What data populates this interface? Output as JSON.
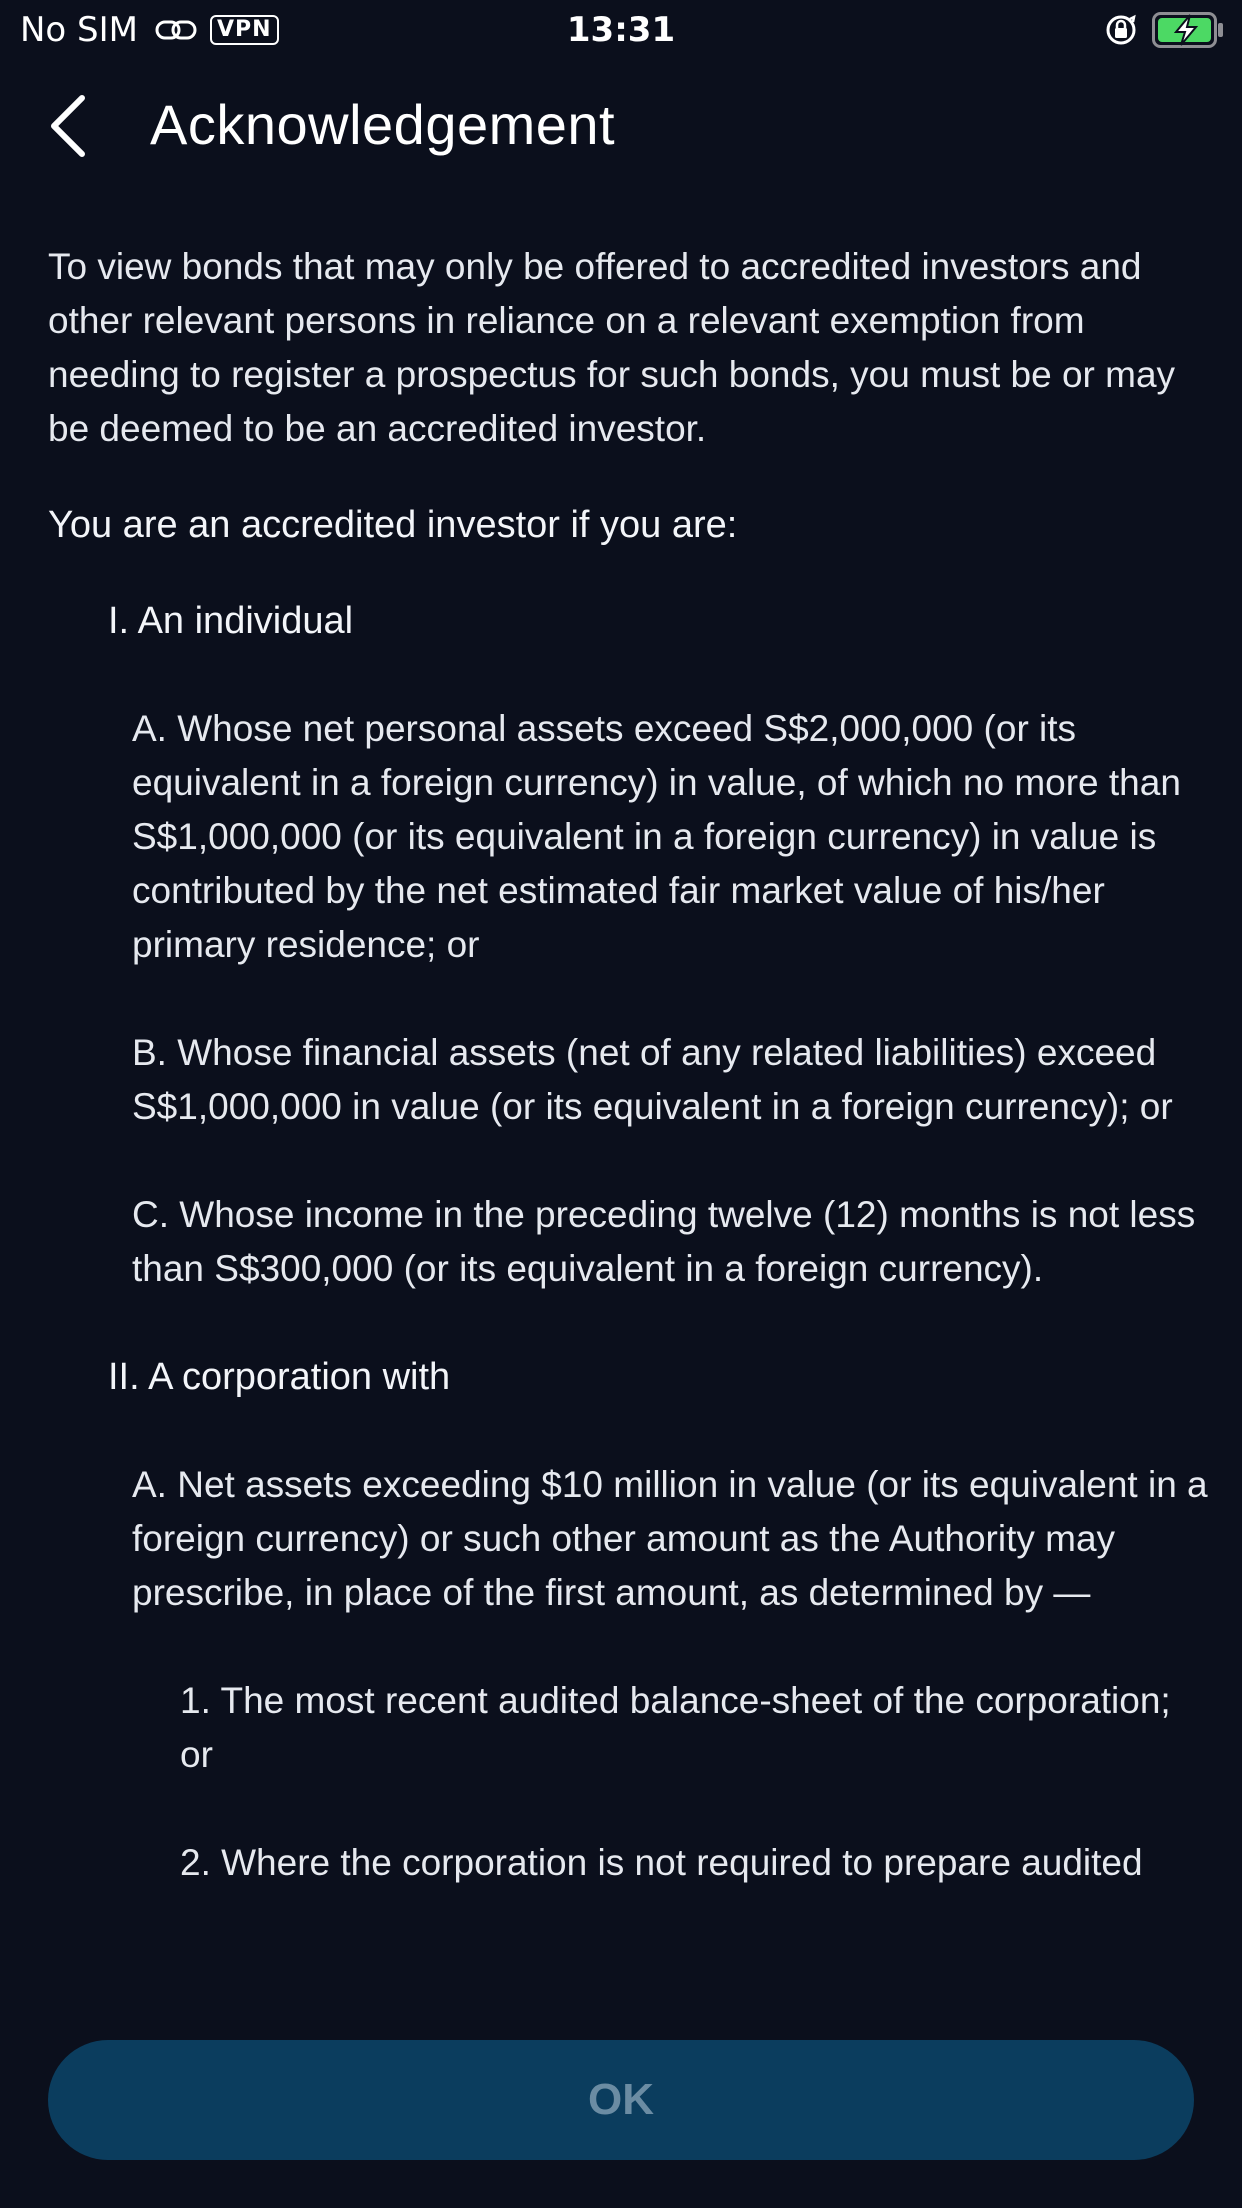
{
  "status_bar": {
    "carrier": "No SIM",
    "vpn": "VPN",
    "time": "13:31",
    "battery_color": "#4cd964"
  },
  "header": {
    "title": "Acknowledgement",
    "back_icon": "chevron-left-icon"
  },
  "content": {
    "intro": "To view bonds that may only be offered to accredited investors and other relevant persons in reliance on a relevant exemption from needing to register a prospectus for such bonds, you must be or may be deemed to be an accredited investor.",
    "accredited_heading": "You are an accredited investor if you are:",
    "sections": [
      {
        "title": "I. An individual",
        "clauses": [
          "A. Whose net personal assets exceed S$2,000,000 (or its equivalent in a foreign currency) in value, of which no more than S$1,000,000 (or its equivalent in a foreign currency) in value is contributed by the net estimated fair market value of his/her primary residence; or",
          "B. Whose financial assets (net of any related liabilities) exceed S$1,000,000 in value (or its equivalent in a foreign currency); or",
          "C. Whose income in the preceding twelve (12) months is not less than S$300,000 (or its equivalent in a foreign currency)."
        ]
      },
      {
        "title": "II. A corporation with",
        "clauses": [
          "A. Net assets exceeding $10 million in value (or its equivalent in a foreign currency) or such other amount as the Authority may prescribe, in place of the first amount, as determined by —"
        ],
        "subclauses": [
          "1. The most recent audited balance-sheet of the corporation; or",
          "2. Where the corporation is not required to prepare audited"
        ]
      }
    ]
  },
  "ok_button": {
    "label": "OK",
    "background": "#0b3d5e",
    "text_color": "#6b8ca3"
  },
  "colors": {
    "background": "#0b0f1c",
    "text": "#e6e9ef"
  }
}
